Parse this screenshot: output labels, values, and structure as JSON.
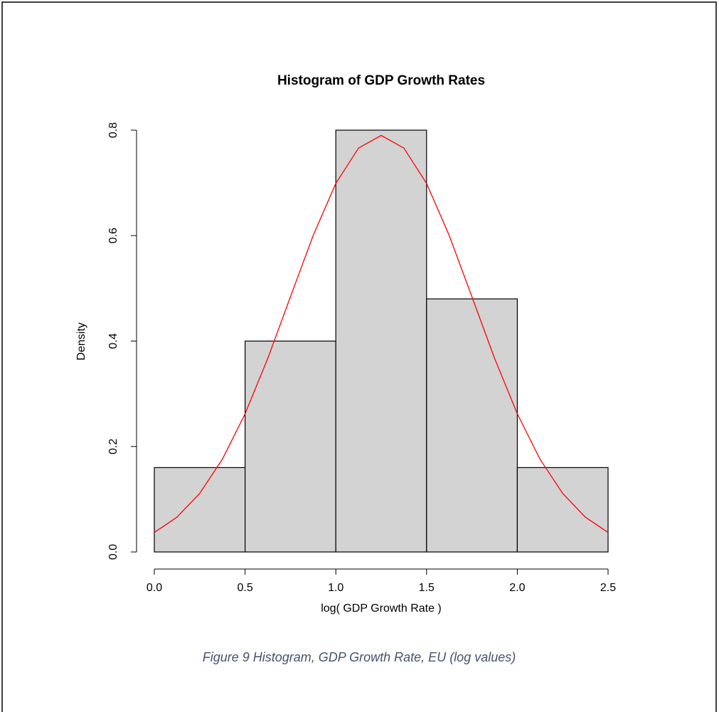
{
  "chart_data": {
    "type": "histogram",
    "title": "Histogram of GDP Growth Rates",
    "xlabel": "log( GDP Growth Rate )",
    "ylabel": "Density",
    "bins": [
      0,
      0.5,
      1,
      1.5,
      2,
      2.5
    ],
    "values": [
      0.16,
      0.4,
      0.8,
      0.48,
      0.16
    ],
    "color": "#d3d3d3",
    "xlim": [
      0,
      2.5
    ],
    "ylim": [
      0,
      0.8
    ],
    "xticks": [
      {
        "value": 0,
        "label": "0.0"
      },
      0.5,
      {
        "value": 1,
        "label": "1.0"
      },
      1.5,
      {
        "value": 2,
        "label": "2.0"
      },
      2.5
    ],
    "yticks": [
      {
        "value": 0,
        "label": "0.0"
      },
      0.2,
      0.4,
      0.6,
      0.8
    ],
    "overlay": {
      "type": "line",
      "color": "#ff0000",
      "x": [
        0,
        0.125,
        0.25,
        0.375,
        0.5,
        0.625,
        0.75,
        0.875,
        1,
        1.125,
        1.25,
        1.375,
        1.5,
        1.625,
        1.75,
        1.875,
        2,
        2.125,
        2.25,
        2.375,
        2.5
      ],
      "values": [
        0.037,
        0.066,
        0.111,
        0.176,
        0.262,
        0.367,
        0.484,
        0.6,
        0.699,
        0.766,
        0.79,
        0.766,
        0.699,
        0.6,
        0.484,
        0.367,
        0.262,
        0.176,
        0.111,
        0.066,
        0.037
      ]
    }
  },
  "caption": "Figure 9 Histogram, GDP Growth Rate, EU (log values)"
}
